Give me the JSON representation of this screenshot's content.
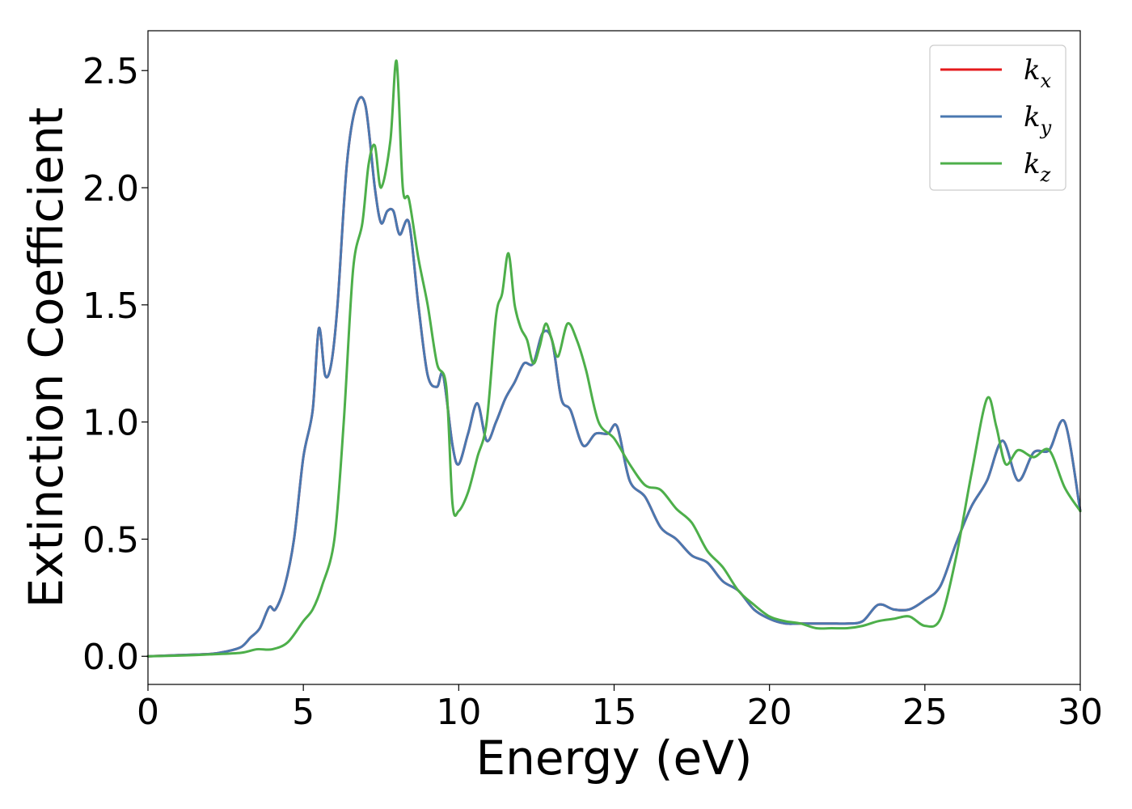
{
  "chart_data": {
    "type": "line",
    "title": "",
    "xlabel": "Energy (eV)",
    "ylabel": "Extinction Coefficient",
    "xlim": [
      0,
      30
    ],
    "ylim": [
      -0.12,
      2.67
    ],
    "xticks": [
      0,
      5,
      10,
      15,
      20,
      25,
      30
    ],
    "xtick_labels": [
      "0",
      "5",
      "10",
      "15",
      "20",
      "25",
      "30"
    ],
    "yticks": [
      0.0,
      0.5,
      1.0,
      1.5,
      2.0,
      2.5
    ],
    "ytick_labels": [
      "0.0",
      "0.5",
      "1.0",
      "1.5",
      "2.0",
      "2.5"
    ],
    "grid": false,
    "legend_position": "top-right",
    "series": [
      {
        "name": "k_x",
        "legend_main": "k",
        "legend_sub": "x",
        "color": "#e41a1c",
        "x": [
          0,
          1,
          2,
          2.5,
          3,
          3.3,
          3.6,
          3.9,
          4.1,
          4.4,
          4.7,
          5.0,
          5.3,
          5.5,
          5.7,
          5.9,
          6.1,
          6.4,
          6.7,
          7.0,
          7.3,
          7.5,
          7.7,
          7.9,
          8.1,
          8.4,
          8.7,
          9.0,
          9.3,
          9.5,
          9.8,
          10.0,
          10.3,
          10.6,
          10.9,
          11.2,
          11.5,
          11.8,
          12.1,
          12.4,
          12.7,
          13.0,
          13.3,
          13.6,
          14.0,
          14.4,
          14.8,
          15.1,
          15.5,
          16.0,
          16.5,
          17.0,
          17.5,
          18.0,
          18.5,
          19.0,
          19.5,
          20.0,
          20.5,
          21.0,
          21.5,
          22.0,
          22.5,
          23.0,
          23.5,
          24.0,
          24.5,
          25.0,
          25.5,
          26.0,
          26.5,
          27.0,
          27.5,
          28.0,
          28.5,
          29.0,
          29.5,
          30.0
        ],
        "values": [
          0,
          0.005,
          0.01,
          0.02,
          0.04,
          0.08,
          0.12,
          0.21,
          0.2,
          0.3,
          0.5,
          0.85,
          1.05,
          1.4,
          1.2,
          1.25,
          1.5,
          2.1,
          2.35,
          2.35,
          2.0,
          1.85,
          1.9,
          1.9,
          1.8,
          1.85,
          1.5,
          1.2,
          1.15,
          1.2,
          0.9,
          0.82,
          0.95,
          1.08,
          0.92,
          1.0,
          1.1,
          1.17,
          1.25,
          1.25,
          1.38,
          1.35,
          1.1,
          1.05,
          0.9,
          0.95,
          0.95,
          0.98,
          0.75,
          0.68,
          0.55,
          0.5,
          0.43,
          0.4,
          0.32,
          0.28,
          0.2,
          0.16,
          0.14,
          0.14,
          0.14,
          0.14,
          0.14,
          0.15,
          0.22,
          0.2,
          0.2,
          0.24,
          0.3,
          0.48,
          0.64,
          0.75,
          0.92,
          0.75,
          0.87,
          0.88,
          1.0,
          0.62
        ]
      },
      {
        "name": "k_y",
        "legend_main": "k",
        "legend_sub": "y",
        "color": "#4a78b0",
        "x": [
          0,
          1,
          2,
          2.5,
          3,
          3.3,
          3.6,
          3.9,
          4.1,
          4.4,
          4.7,
          5.0,
          5.3,
          5.5,
          5.7,
          5.9,
          6.1,
          6.4,
          6.7,
          7.0,
          7.3,
          7.5,
          7.7,
          7.9,
          8.1,
          8.4,
          8.7,
          9.0,
          9.3,
          9.5,
          9.8,
          10.0,
          10.3,
          10.6,
          10.9,
          11.2,
          11.5,
          11.8,
          12.1,
          12.4,
          12.7,
          13.0,
          13.3,
          13.6,
          14.0,
          14.4,
          14.8,
          15.1,
          15.5,
          16.0,
          16.5,
          17.0,
          17.5,
          18.0,
          18.5,
          19.0,
          19.5,
          20.0,
          20.5,
          21.0,
          21.5,
          22.0,
          22.5,
          23.0,
          23.5,
          24.0,
          24.5,
          25.0,
          25.5,
          26.0,
          26.5,
          27.0,
          27.5,
          28.0,
          28.5,
          29.0,
          29.5,
          30.0
        ],
        "values": [
          0,
          0.005,
          0.01,
          0.02,
          0.04,
          0.08,
          0.12,
          0.21,
          0.2,
          0.3,
          0.5,
          0.85,
          1.05,
          1.4,
          1.2,
          1.25,
          1.5,
          2.1,
          2.35,
          2.35,
          2.0,
          1.85,
          1.9,
          1.9,
          1.8,
          1.85,
          1.5,
          1.2,
          1.15,
          1.2,
          0.9,
          0.82,
          0.95,
          1.08,
          0.92,
          1.0,
          1.1,
          1.17,
          1.25,
          1.25,
          1.38,
          1.35,
          1.1,
          1.05,
          0.9,
          0.95,
          0.95,
          0.98,
          0.75,
          0.68,
          0.55,
          0.5,
          0.43,
          0.4,
          0.32,
          0.28,
          0.2,
          0.16,
          0.14,
          0.14,
          0.14,
          0.14,
          0.14,
          0.15,
          0.22,
          0.2,
          0.2,
          0.24,
          0.3,
          0.48,
          0.64,
          0.75,
          0.92,
          0.75,
          0.87,
          0.88,
          1.0,
          0.62
        ]
      },
      {
        "name": "k_z",
        "legend_main": "k",
        "legend_sub": "z",
        "color": "#4daf4a",
        "x": [
          0,
          1,
          2,
          3,
          3.5,
          4.0,
          4.5,
          5.0,
          5.3,
          5.6,
          6.0,
          6.3,
          6.6,
          6.9,
          7.1,
          7.3,
          7.5,
          7.8,
          8.0,
          8.2,
          8.4,
          8.7,
          9.0,
          9.3,
          9.6,
          9.8,
          10.0,
          10.3,
          10.6,
          10.9,
          11.2,
          11.4,
          11.6,
          11.8,
          12.0,
          12.2,
          12.4,
          12.6,
          12.8,
          13.0,
          13.2,
          13.5,
          13.8,
          14.1,
          14.5,
          15.0,
          15.5,
          16.0,
          16.5,
          17.0,
          17.5,
          18.0,
          18.5,
          19.0,
          19.5,
          20.0,
          20.5,
          21.0,
          21.5,
          22.0,
          22.5,
          23.0,
          23.5,
          24.0,
          24.5,
          25.0,
          25.5,
          26.0,
          26.5,
          27.0,
          27.3,
          27.6,
          28.0,
          28.5,
          29.0,
          29.5,
          30.0
        ],
        "values": [
          0,
          0.003,
          0.008,
          0.015,
          0.03,
          0.03,
          0.06,
          0.15,
          0.2,
          0.3,
          0.5,
          1.0,
          1.65,
          1.85,
          2.1,
          2.18,
          2.0,
          2.2,
          2.54,
          2.0,
          1.95,
          1.7,
          1.5,
          1.25,
          1.15,
          0.65,
          0.62,
          0.7,
          0.85,
          1.0,
          1.45,
          1.55,
          1.72,
          1.5,
          1.4,
          1.35,
          1.25,
          1.32,
          1.42,
          1.35,
          1.28,
          1.42,
          1.35,
          1.22,
          1.0,
          0.93,
          0.82,
          0.73,
          0.71,
          0.63,
          0.57,
          0.45,
          0.38,
          0.28,
          0.22,
          0.17,
          0.15,
          0.14,
          0.12,
          0.12,
          0.12,
          0.13,
          0.15,
          0.16,
          0.17,
          0.13,
          0.16,
          0.42,
          0.78,
          1.1,
          0.98,
          0.82,
          0.88,
          0.85,
          0.88,
          0.72,
          0.62
        ]
      }
    ]
  }
}
